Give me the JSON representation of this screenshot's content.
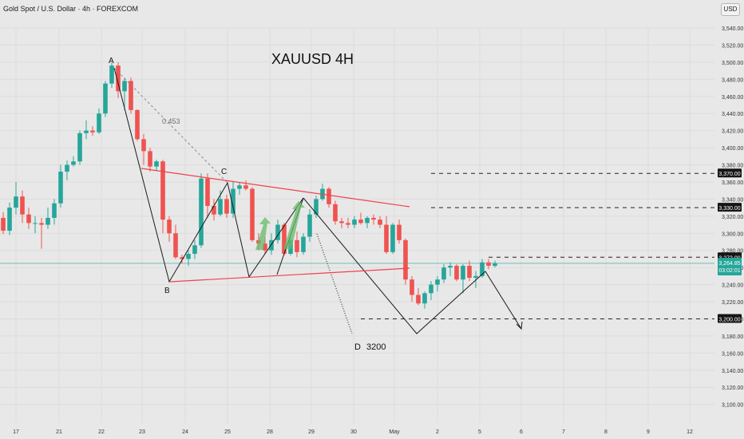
{
  "header": {
    "symbol": "Gold Spot / U.S. Dollar · 4h · FOREXCOM"
  },
  "currency_button": "USD",
  "chart_data": {
    "type": "candlestick",
    "title": "XAUUSD  4H",
    "ylim": [
      3100,
      3550
    ],
    "y_ticks": [
      "3,100.00",
      "3,120.00",
      "3,140.00",
      "3,160.00",
      "3,180.00",
      "3,200.00",
      "3,220.00",
      "3,240.00",
      "3,260.00",
      "3,280.00",
      "3,300.00",
      "3,320.00",
      "3,340.00",
      "3,360.00",
      "3,380.00",
      "3,400.00",
      "3,420.00",
      "3,440.00",
      "3,460.00",
      "3,480.00",
      "3,500.00",
      "3,520.00",
      "3,540.00"
    ],
    "x_ticks": [
      "17",
      "21",
      "22",
      "23",
      "24",
      "25",
      "28",
      "29",
      "30",
      "May",
      "2",
      "5",
      "6",
      "7",
      "8",
      "9",
      "12"
    ],
    "level_labels": [
      "3,370.00",
      "3,330.00",
      "3,272.00",
      "3,200.00"
    ],
    "current_price": "3,264.85",
    "countdown": "03:02:01",
    "annotations": [
      "A",
      "B",
      "C",
      "D",
      "3200",
      "0.453"
    ],
    "colors": {
      "up": "#26a69a",
      "down": "#ef5350",
      "trendline": "#f2404d",
      "marker_line": "#1a1a1a",
      "arrow_fill": "#66bb6a",
      "price_line": "#26a69a"
    },
    "candles": [
      [
        3318,
        3325,
        3299,
        3303
      ],
      [
        3303,
        3336,
        3298,
        3330
      ],
      [
        3330,
        3360,
        3322,
        3343
      ],
      [
        3343,
        3350,
        3312,
        3322
      ],
      [
        3322,
        3330,
        3305,
        3312
      ],
      [
        3312,
        3320,
        3300,
        3312
      ],
      [
        3312,
        3318,
        3282,
        3310
      ],
      [
        3310,
        3330,
        3305,
        3318
      ],
      [
        3318,
        3340,
        3310,
        3335
      ],
      [
        3335,
        3380,
        3330,
        3372
      ],
      [
        3372,
        3385,
        3362,
        3380
      ],
      [
        3380,
        3390,
        3378,
        3384
      ],
      [
        3384,
        3420,
        3380,
        3417
      ],
      [
        3417,
        3432,
        3410,
        3420
      ],
      [
        3420,
        3425,
        3414,
        3418
      ],
      [
        3418,
        3446,
        3416,
        3440
      ],
      [
        3440,
        3478,
        3436,
        3475
      ],
      [
        3475,
        3500,
        3470,
        3496
      ],
      [
        3496,
        3500,
        3458,
        3466
      ],
      [
        3466,
        3482,
        3444,
        3478
      ],
      [
        3478,
        3482,
        3440,
        3444
      ],
      [
        3444,
        3445,
        3408,
        3410
      ],
      [
        3410,
        3416,
        3380,
        3396
      ],
      [
        3396,
        3400,
        3372,
        3378
      ],
      [
        3378,
        3386,
        3374,
        3384
      ],
      [
        3384,
        3386,
        3300,
        3316
      ],
      [
        3316,
        3320,
        3290,
        3300
      ],
      [
        3300,
        3310,
        3270,
        3272
      ],
      [
        3272,
        3275,
        3265,
        3270
      ],
      [
        3270,
        3280,
        3262,
        3276
      ],
      [
        3276,
        3292,
        3270,
        3286
      ],
      [
        3286,
        3370,
        3283,
        3364
      ],
      [
        3364,
        3370,
        3318,
        3332
      ],
      [
        3332,
        3340,
        3315,
        3322
      ],
      [
        3322,
        3350,
        3320,
        3340
      ],
      [
        3340,
        3345,
        3318,
        3323
      ],
      [
        3323,
        3360,
        3318,
        3352
      ],
      [
        3352,
        3360,
        3345,
        3356
      ],
      [
        3356,
        3362,
        3350,
        3352
      ],
      [
        3352,
        3354,
        3290,
        3292
      ],
      [
        3292,
        3300,
        3280,
        3288
      ],
      [
        3288,
        3296,
        3276,
        3280
      ],
      [
        3280,
        3300,
        3275,
        3292
      ],
      [
        3292,
        3316,
        3288,
        3310
      ],
      [
        3310,
        3312,
        3274,
        3276
      ],
      [
        3276,
        3295,
        3274,
        3292
      ],
      [
        3292,
        3302,
        3272,
        3278
      ],
      [
        3278,
        3300,
        3275,
        3296
      ],
      [
        3296,
        3328,
        3290,
        3322
      ],
      [
        3322,
        3344,
        3318,
        3340
      ],
      [
        3340,
        3358,
        3338,
        3352
      ],
      [
        3352,
        3354,
        3330,
        3334
      ],
      [
        3334,
        3338,
        3310,
        3314
      ],
      [
        3314,
        3318,
        3306,
        3312
      ],
      [
        3312,
        3318,
        3306,
        3310
      ],
      [
        3310,
        3320,
        3306,
        3316
      ],
      [
        3316,
        3324,
        3310,
        3312
      ],
      [
        3312,
        3320,
        3306,
        3318
      ],
      [
        3318,
        3322,
        3310,
        3316
      ],
      [
        3316,
        3320,
        3306,
        3310
      ],
      [
        3310,
        3320,
        3276,
        3278
      ],
      [
        3278,
        3312,
        3276,
        3310
      ],
      [
        3310,
        3316,
        3288,
        3292
      ],
      [
        3292,
        3294,
        3240,
        3246
      ],
      [
        3246,
        3250,
        3220,
        3228
      ],
      [
        3228,
        3236,
        3216,
        3218
      ],
      [
        3218,
        3232,
        3212,
        3230
      ],
      [
        3230,
        3244,
        3222,
        3240
      ],
      [
        3240,
        3250,
        3232,
        3246
      ],
      [
        3246,
        3264,
        3242,
        3260
      ],
      [
        3260,
        3266,
        3250,
        3262
      ],
      [
        3262,
        3264,
        3244,
        3246
      ],
      [
        3246,
        3264,
        3230,
        3262
      ],
      [
        3262,
        3268,
        3244,
        3248
      ],
      [
        3248,
        3256,
        3236,
        3250
      ],
      [
        3250,
        3270,
        3248,
        3266
      ],
      [
        3266,
        3270,
        3258,
        3262
      ],
      [
        3262,
        3268,
        3260,
        3265
      ]
    ]
  }
}
